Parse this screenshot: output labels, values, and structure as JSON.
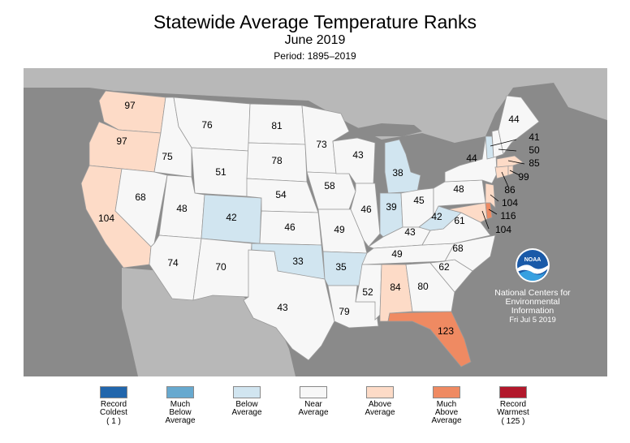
{
  "title": "Statewide Average Temperature Ranks",
  "subtitle": "June 2019",
  "period": "Period: 1895–2019",
  "credit": {
    "line1": "National Centers for",
    "line2": "Environmental",
    "line3": "Information",
    "date": "Fri Jul  5 2019",
    "logo_icon": "noaa-logo-icon",
    "logo_text": "NOAA"
  },
  "colors": {
    "record_coldest": "#2166ac",
    "much_below": "#67a9cf",
    "below": "#d1e5f0",
    "near": "#f7f7f7",
    "above": "#fddbc7",
    "much_above": "#ef8a62",
    "record_warmest": "#b2182b",
    "ocean": "#8a8a8a"
  },
  "legend": [
    {
      "label": "Record\nColdest",
      "extra": "( 1 )",
      "color_key": "record_coldest"
    },
    {
      "label": "Much\nBelow\nAverage",
      "extra": "",
      "color_key": "much_below"
    },
    {
      "label": "Below\nAverage",
      "extra": "",
      "color_key": "below"
    },
    {
      "label": "Near\nAverage",
      "extra": "",
      "color_key": "near"
    },
    {
      "label": "Above\nAverage",
      "extra": "",
      "color_key": "above"
    },
    {
      "label": "Much\nAbove\nAverage",
      "extra": "",
      "color_key": "much_above"
    },
    {
      "label": "Record\nWarmest",
      "extra": "( 125 )",
      "color_key": "record_warmest"
    }
  ],
  "states": [
    {
      "id": "WA",
      "rank": "97",
      "category": "above"
    },
    {
      "id": "OR",
      "rank": "97",
      "category": "above"
    },
    {
      "id": "CA",
      "rank": "104",
      "category": "above"
    },
    {
      "id": "ID",
      "rank": "75",
      "category": "near"
    },
    {
      "id": "NV",
      "rank": "68",
      "category": "near"
    },
    {
      "id": "MT",
      "rank": "76",
      "category": "near"
    },
    {
      "id": "WY",
      "rank": "51",
      "category": "near"
    },
    {
      "id": "UT",
      "rank": "48",
      "category": "near"
    },
    {
      "id": "AZ",
      "rank": "74",
      "category": "near"
    },
    {
      "id": "CO",
      "rank": "42",
      "category": "below"
    },
    {
      "id": "NM",
      "rank": "70",
      "category": "near"
    },
    {
      "id": "ND",
      "rank": "81",
      "category": "near"
    },
    {
      "id": "SD",
      "rank": "78",
      "category": "near"
    },
    {
      "id": "NE",
      "rank": "54",
      "category": "near"
    },
    {
      "id": "KS",
      "rank": "46",
      "category": "near"
    },
    {
      "id": "OK",
      "rank": "33",
      "category": "below"
    },
    {
      "id": "TX",
      "rank": "43",
      "category": "near"
    },
    {
      "id": "MN",
      "rank": "73",
      "category": "near"
    },
    {
      "id": "IA",
      "rank": "58",
      "category": "near"
    },
    {
      "id": "MO",
      "rank": "49",
      "category": "near"
    },
    {
      "id": "AR",
      "rank": "35",
      "category": "below"
    },
    {
      "id": "LA",
      "rank": "79",
      "category": "near"
    },
    {
      "id": "WI",
      "rank": "43",
      "category": "near"
    },
    {
      "id": "IL",
      "rank": "46",
      "category": "near"
    },
    {
      "id": "MI",
      "rank": "38",
      "category": "below"
    },
    {
      "id": "IN",
      "rank": "39",
      "category": "below"
    },
    {
      "id": "OH",
      "rank": "45",
      "category": "near"
    },
    {
      "id": "KY",
      "rank": "43",
      "category": "near"
    },
    {
      "id": "TN",
      "rank": "49",
      "category": "near"
    },
    {
      "id": "MS",
      "rank": "52",
      "category": "near"
    },
    {
      "id": "AL",
      "rank": "84",
      "category": "above"
    },
    {
      "id": "GA",
      "rank": "80",
      "category": "near"
    },
    {
      "id": "FL",
      "rank": "123",
      "category": "much_above"
    },
    {
      "id": "SC",
      "rank": "62",
      "category": "near"
    },
    {
      "id": "NC",
      "rank": "68",
      "category": "near"
    },
    {
      "id": "VA",
      "rank": "61",
      "category": "near"
    },
    {
      "id": "WV",
      "rank": "42",
      "category": "below"
    },
    {
      "id": "PA",
      "rank": "48",
      "category": "near"
    },
    {
      "id": "NY",
      "rank": "44",
      "category": "near"
    },
    {
      "id": "ME",
      "rank": "44",
      "category": "near"
    },
    {
      "id": "VT",
      "rank": "41",
      "category": "below"
    },
    {
      "id": "NH",
      "rank": "50",
      "category": "near"
    },
    {
      "id": "MA",
      "rank": "85",
      "category": "above"
    },
    {
      "id": "RI",
      "rank": "99",
      "category": "above"
    },
    {
      "id": "CT",
      "rank": "86",
      "category": "above"
    },
    {
      "id": "NJ",
      "rank": "104",
      "category": "above"
    },
    {
      "id": "DE",
      "rank": "116",
      "category": "much_above"
    },
    {
      "id": "MD",
      "rank": "104",
      "category": "above"
    }
  ]
}
